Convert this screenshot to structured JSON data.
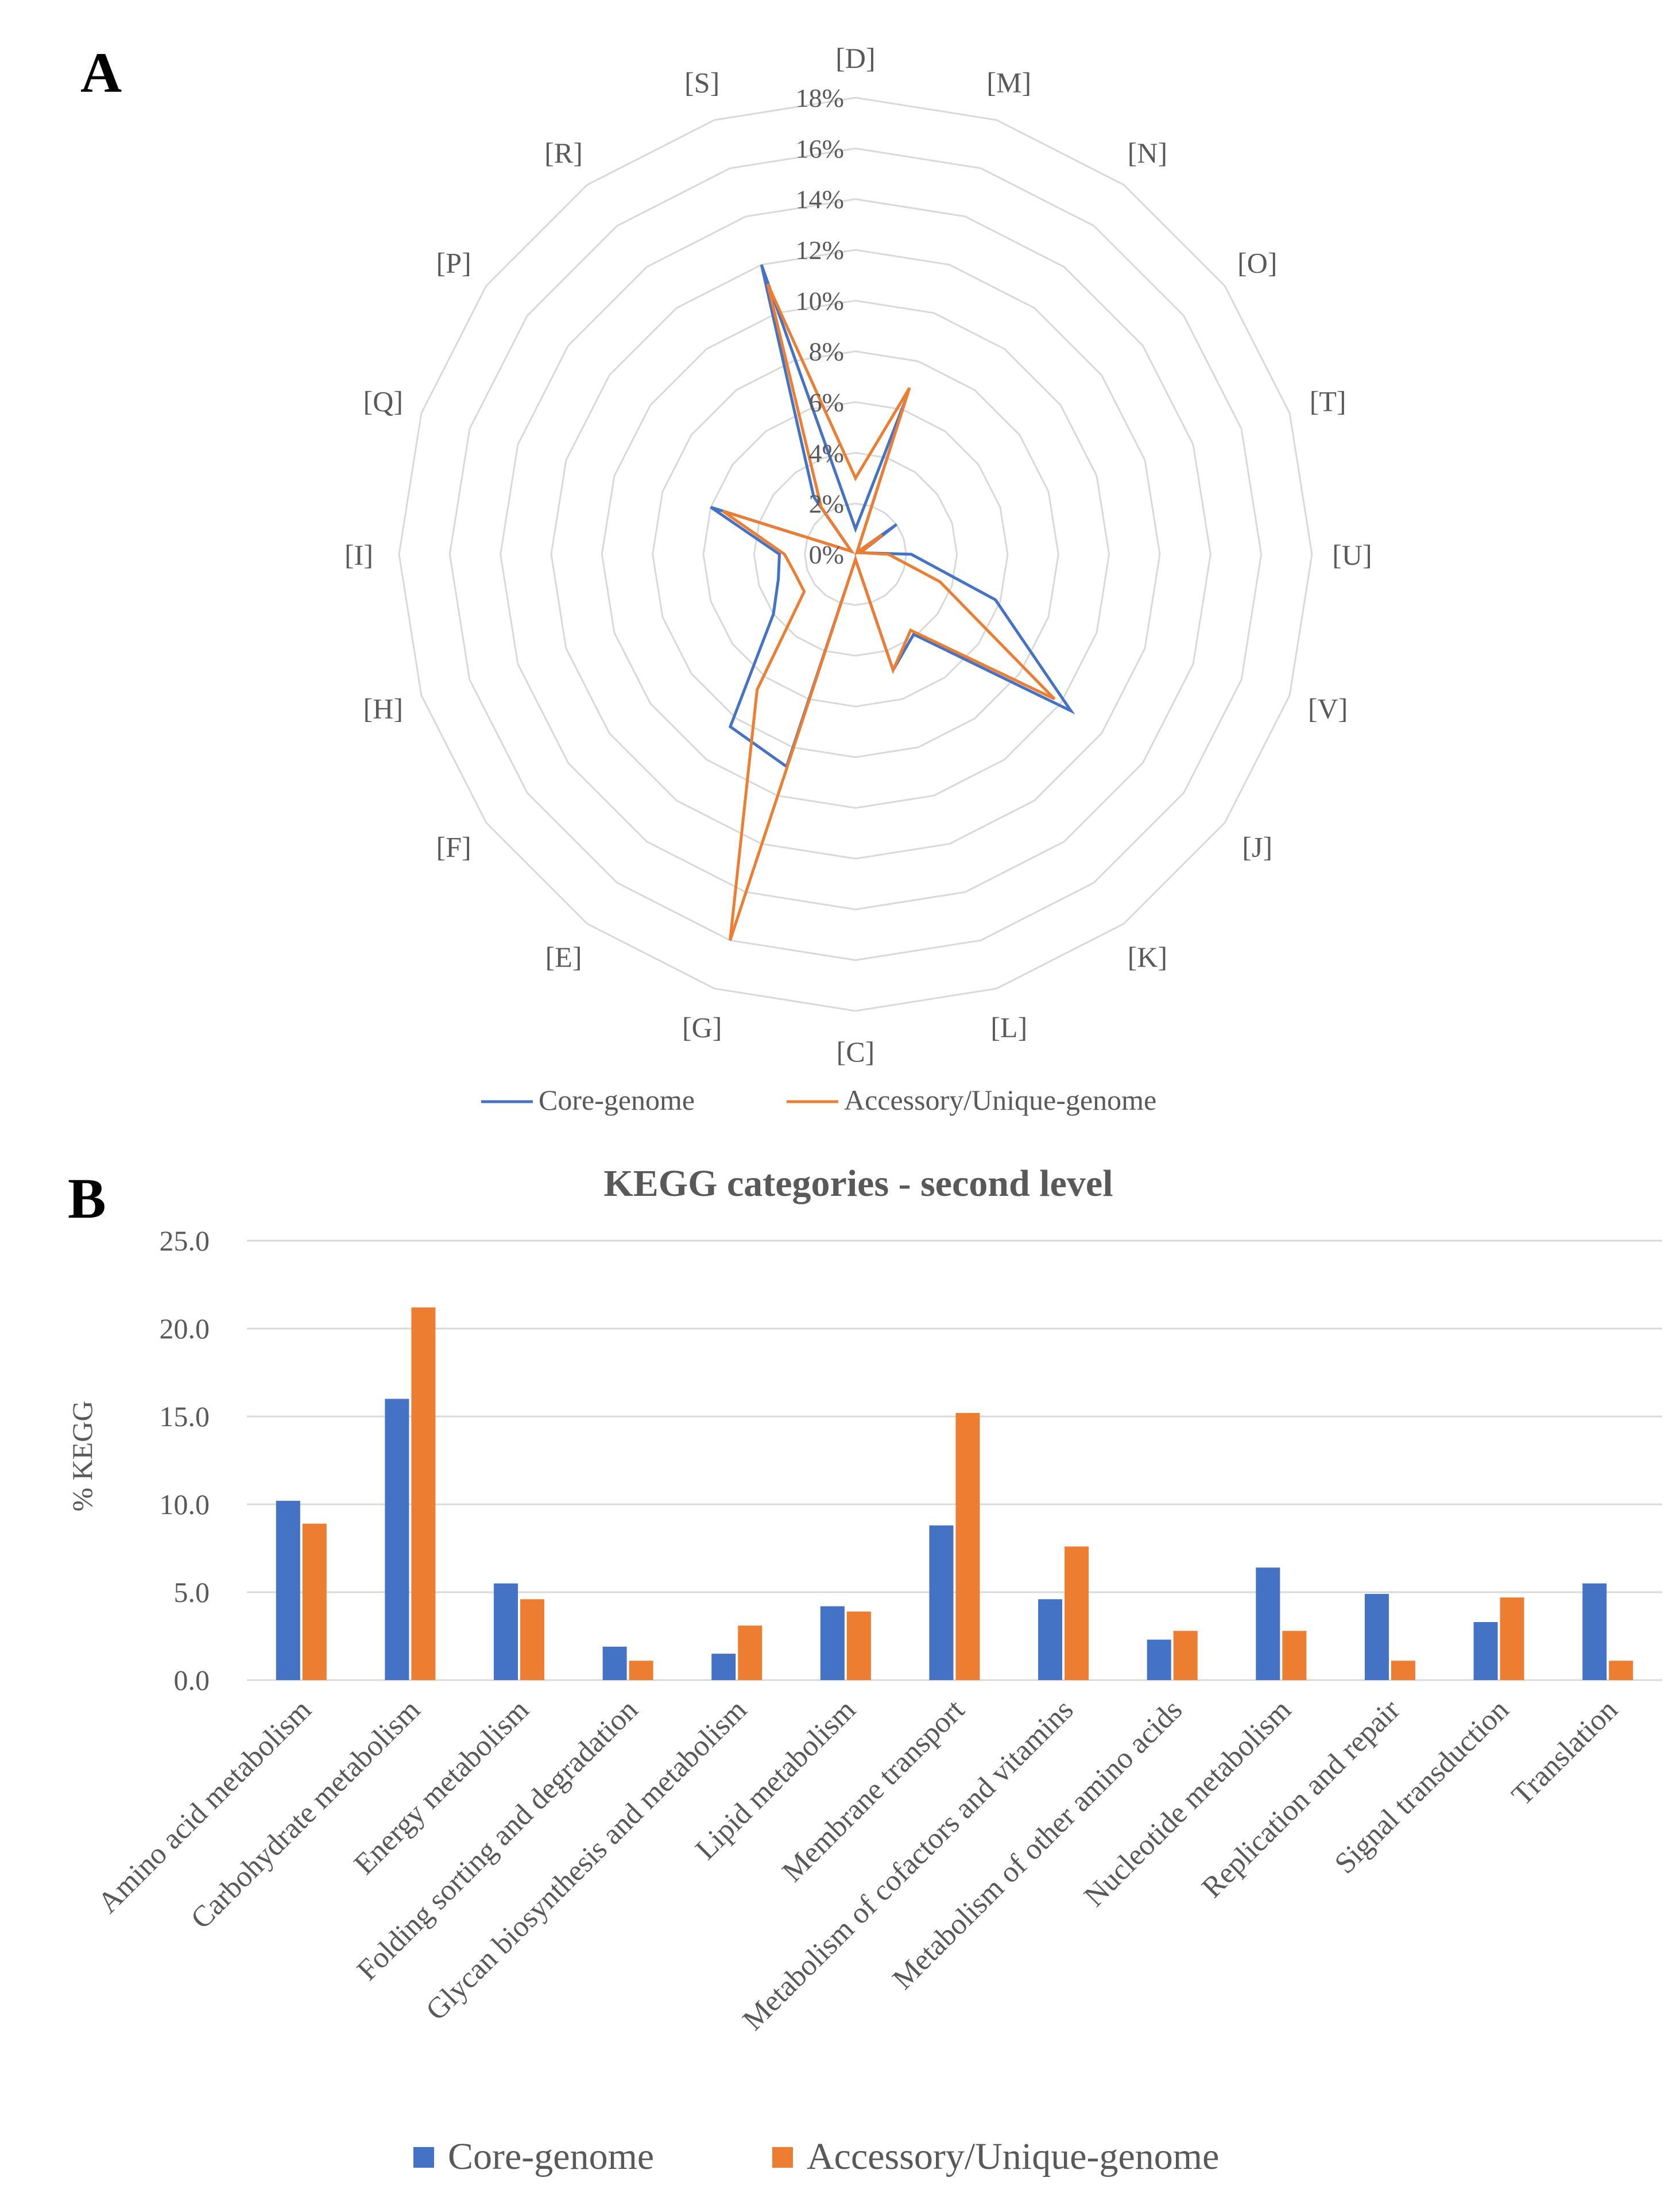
{
  "colors": {
    "core": "#4472C4",
    "accessory": "#ED7D31",
    "grid": "#D9D9D9",
    "text": "#595959"
  },
  "panels": {
    "a_label": "A",
    "b_label": "B"
  },
  "chart_data": [
    {
      "type": "radar",
      "categories": [
        "[D]",
        "[M]",
        "[N]",
        "[O]",
        "[T]",
        "[U]",
        "[V]",
        "[J]",
        "[K]",
        "[L]",
        "[C]",
        "[G]",
        "[E]",
        "[F]",
        "[H]",
        "[I]",
        "[Q]",
        "[P]",
        "[R]",
        "[S]"
      ],
      "tick_labels": [
        "0%",
        "2%",
        "4%",
        "6%",
        "8%",
        "10%",
        "12%",
        "14%",
        "16%",
        "18%"
      ],
      "rmax": 18,
      "series": [
        {
          "name": "Core-genome",
          "values": [
            1.0,
            6.5,
            0.1,
            2.0,
            0.2,
            2.2,
            5.8,
            10.5,
            3.9,
            4.8,
            0.2,
            8.8,
            8.4,
            4.0,
            3.2,
            3.0,
            6.0,
            0.2,
            2.8,
            12.0
          ]
        },
        {
          "name": "Accessory/Unique-genome",
          "values": [
            3.0,
            6.9,
            0.1,
            1.3,
            0.2,
            1.3,
            3.5,
            9.7,
            3.7,
            4.8,
            0.2,
            16.0,
            6.6,
            2.5,
            2.5,
            2.8,
            5.5,
            0.2,
            2.3,
            11.2
          ]
        }
      ],
      "legend": [
        "Core-genome",
        "Accessory/Unique-genome"
      ]
    },
    {
      "type": "bar",
      "title": "KEGG categories - second level",
      "ylabel": "% KEGG",
      "xlabel": "",
      "ylim": [
        0,
        25
      ],
      "yticks": [
        "0.0",
        "5.0",
        "10.0",
        "15.0",
        "20.0",
        "25.0"
      ],
      "categories": [
        "Amino acid metabolism",
        "Carbohydrate metabolism",
        "Energy metabolism",
        "Folding sorting and degradation",
        "Glycan biosynthesis and metabolism",
        "Lipid metabolism",
        "Membrane transport",
        "Metabolism of cofactors and vitamins",
        "Metabolism of other amino acids",
        "Nucleotide metabolism",
        "Replication and repair",
        "Signal transduction",
        "Translation"
      ],
      "series": [
        {
          "name": "Core-genome",
          "values": [
            10.2,
            16.0,
            5.5,
            1.9,
            1.5,
            4.2,
            8.8,
            4.6,
            2.3,
            6.4,
            4.9,
            3.3,
            5.5
          ]
        },
        {
          "name": "Accessory/Unique-genome",
          "values": [
            8.9,
            21.2,
            4.6,
            1.1,
            3.1,
            3.9,
            15.2,
            7.6,
            2.8,
            2.8,
            1.1,
            4.7,
            1.1
          ]
        }
      ],
      "legend": [
        "Core-genome",
        "Accessory/Unique-genome"
      ]
    }
  ]
}
